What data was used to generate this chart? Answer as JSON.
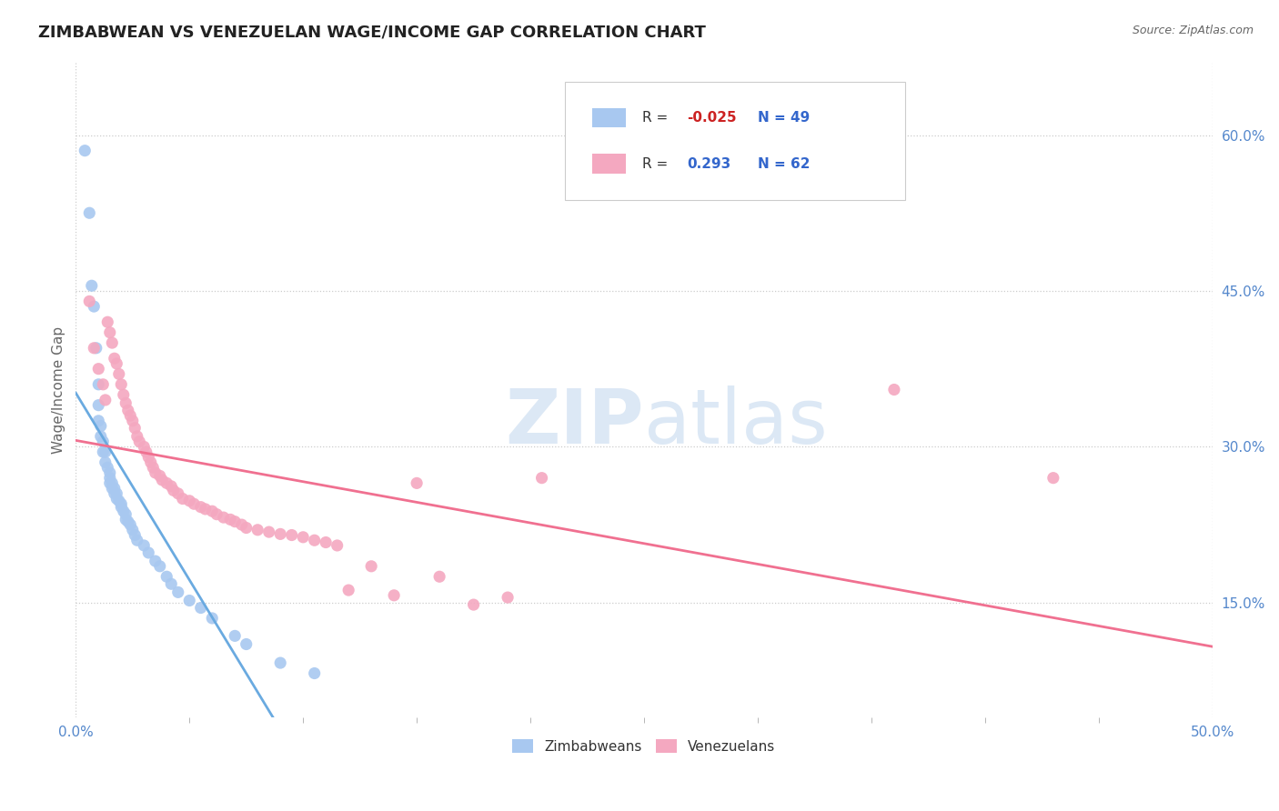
{
  "title": "ZIMBABWEAN VS VENEZUELAN WAGE/INCOME GAP CORRELATION CHART",
  "source": "Source: ZipAtlas.com",
  "ylabel": "Wage/Income Gap",
  "x_min": 0.0,
  "x_max": 0.5,
  "y_min": 0.04,
  "y_max": 0.67,
  "x_ticks": [
    0.0,
    0.5
  ],
  "x_tick_labels": [
    "0.0%",
    "50.0%"
  ],
  "y_ticks": [
    0.15,
    0.3,
    0.45,
    0.6
  ],
  "y_tick_labels": [
    "15.0%",
    "30.0%",
    "45.0%",
    "60.0%"
  ],
  "zim_R": "-0.025",
  "zim_N": "49",
  "ven_R": "0.293",
  "ven_N": "62",
  "zim_color": "#a8c8f0",
  "ven_color": "#f4a8c0",
  "zim_line_color": "#6aaae0",
  "ven_line_color": "#f07090",
  "background_color": "#ffffff",
  "grid_color": "#cccccc",
  "watermark_color": "#dce8f5",
  "tick_color": "#5588cc",
  "zimbabweans_x": [
    0.004,
    0.006,
    0.007,
    0.008,
    0.009,
    0.01,
    0.01,
    0.01,
    0.011,
    0.011,
    0.012,
    0.012,
    0.013,
    0.013,
    0.014,
    0.015,
    0.015,
    0.015,
    0.016,
    0.016,
    0.017,
    0.017,
    0.018,
    0.018,
    0.019,
    0.02,
    0.02,
    0.021,
    0.022,
    0.022,
    0.023,
    0.024,
    0.025,
    0.026,
    0.027,
    0.03,
    0.032,
    0.035,
    0.037,
    0.04,
    0.042,
    0.045,
    0.05,
    0.055,
    0.06,
    0.07,
    0.075,
    0.09,
    0.105
  ],
  "zimbabweans_y": [
    0.585,
    0.525,
    0.455,
    0.435,
    0.395,
    0.36,
    0.34,
    0.325,
    0.32,
    0.31,
    0.305,
    0.295,
    0.295,
    0.285,
    0.28,
    0.275,
    0.27,
    0.265,
    0.265,
    0.26,
    0.26,
    0.255,
    0.255,
    0.25,
    0.248,
    0.245,
    0.242,
    0.238,
    0.235,
    0.23,
    0.228,
    0.225,
    0.22,
    0.215,
    0.21,
    0.205,
    0.198,
    0.19,
    0.185,
    0.175,
    0.168,
    0.16,
    0.152,
    0.145,
    0.135,
    0.118,
    0.11,
    0.092,
    0.082
  ],
  "venezuelans_x": [
    0.006,
    0.008,
    0.01,
    0.012,
    0.013,
    0.014,
    0.015,
    0.016,
    0.017,
    0.018,
    0.019,
    0.02,
    0.021,
    0.022,
    0.023,
    0.024,
    0.025,
    0.026,
    0.027,
    0.028,
    0.03,
    0.031,
    0.032,
    0.033,
    0.034,
    0.035,
    0.037,
    0.038,
    0.04,
    0.042,
    0.043,
    0.045,
    0.047,
    0.05,
    0.052,
    0.055,
    0.057,
    0.06,
    0.062,
    0.065,
    0.068,
    0.07,
    0.073,
    0.075,
    0.08,
    0.085,
    0.09,
    0.095,
    0.1,
    0.105,
    0.11,
    0.115,
    0.12,
    0.13,
    0.14,
    0.15,
    0.16,
    0.175,
    0.19,
    0.205,
    0.36,
    0.43
  ],
  "venezuelans_y": [
    0.44,
    0.395,
    0.375,
    0.36,
    0.345,
    0.42,
    0.41,
    0.4,
    0.385,
    0.38,
    0.37,
    0.36,
    0.35,
    0.342,
    0.335,
    0.33,
    0.325,
    0.318,
    0.31,
    0.305,
    0.3,
    0.295,
    0.29,
    0.285,
    0.28,
    0.275,
    0.272,
    0.268,
    0.265,
    0.262,
    0.258,
    0.255,
    0.25,
    0.248,
    0.245,
    0.242,
    0.24,
    0.238,
    0.235,
    0.232,
    0.23,
    0.228,
    0.225,
    0.222,
    0.22,
    0.218,
    0.216,
    0.215,
    0.213,
    0.21,
    0.208,
    0.205,
    0.162,
    0.185,
    0.157,
    0.265,
    0.175,
    0.148,
    0.155,
    0.27,
    0.355,
    0.27
  ]
}
